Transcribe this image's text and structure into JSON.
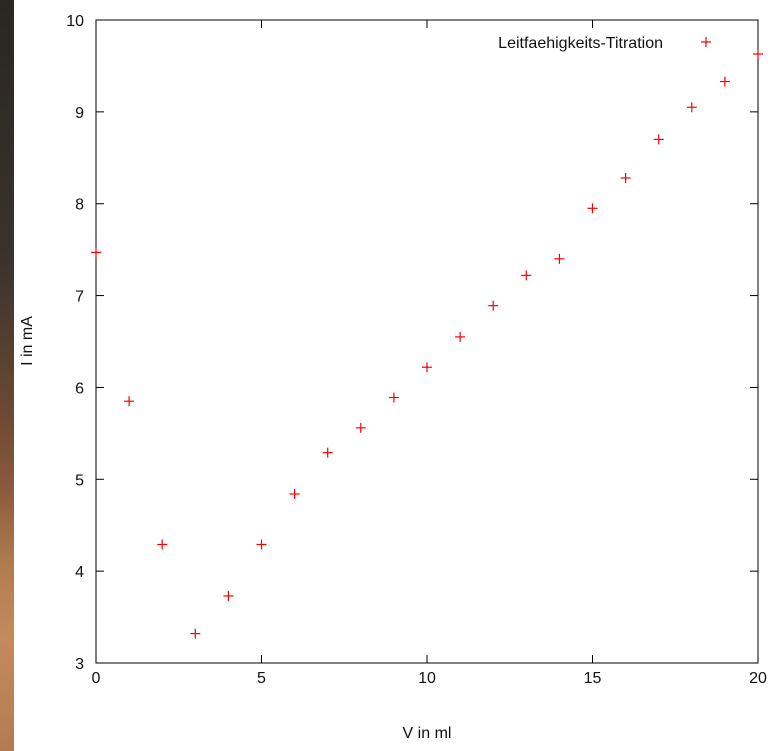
{
  "chart_data": {
    "type": "scatter",
    "title": "",
    "xlabel": "V in ml",
    "ylabel": "I in mA",
    "xlim": [
      0,
      20
    ],
    "ylim": [
      3,
      10
    ],
    "xticks": [
      "0",
      "5",
      "10",
      "15",
      "20"
    ],
    "yticks": [
      "3",
      "4",
      "5",
      "6",
      "7",
      "8",
      "9",
      "10"
    ],
    "grid": false,
    "legend_position": "top-right",
    "series": [
      {
        "name": "Leitfaehigkeits-Titration",
        "color": "#ff0000",
        "marker": "plus",
        "x": [
          0,
          1,
          2,
          3,
          4,
          5,
          6,
          7,
          8,
          9,
          10,
          11,
          12,
          13,
          14,
          15,
          16,
          17,
          18,
          19,
          20
        ],
        "y": [
          7.47,
          5.85,
          4.29,
          3.32,
          3.73,
          4.29,
          4.84,
          5.29,
          5.56,
          5.89,
          6.22,
          6.55,
          6.89,
          7.22,
          7.4,
          7.95,
          8.28,
          8.7,
          9.05,
          9.33,
          9.63
        ]
      }
    ]
  }
}
